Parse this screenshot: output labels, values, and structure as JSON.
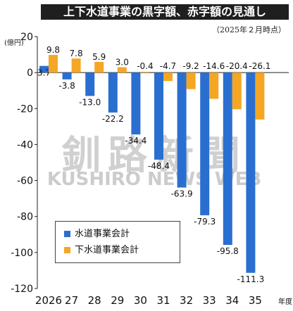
{
  "title": "上下水道事業の黒字額、赤字額の見通し",
  "asof": "（2025年２月時点）",
  "watermark": {
    "main": "釧路新聞",
    "sub": "KUSHIRO NEWS WEB"
  },
  "chart_data": {
    "type": "bar",
    "title": "上下水道事業の黒字額、赤字額の見通し",
    "ylabel": "(億円)",
    "xlabel": "年度",
    "ylim": [
      -120,
      20
    ],
    "yticks": [
      20,
      0,
      -20,
      -40,
      -60,
      -80,
      -100,
      -120
    ],
    "categories": [
      "2026",
      "27",
      "28",
      "29",
      "30",
      "31",
      "32",
      "33",
      "34",
      "35"
    ],
    "x_suffix": "年度",
    "series": [
      {
        "name": "水道事業会計",
        "color": "#2a6fd0",
        "values": [
          3.7,
          -3.8,
          -13.0,
          -22.2,
          -34.4,
          -48.4,
          -63.9,
          -79.3,
          -95.8,
          -111.3
        ],
        "labels": [
          "3.7",
          "-3.8",
          "-13.0",
          "-22.2",
          "-34.4",
          "-48.4",
          "-63.9",
          "-79.3",
          "-95.8",
          "-111.3"
        ]
      },
      {
        "name": "下水道事業会計",
        "color": "#f5a623",
        "values": [
          9.8,
          7.8,
          5.9,
          3.0,
          -0.4,
          -4.7,
          -9.2,
          -14.6,
          -20.4,
          -26.1
        ],
        "labels": [
          "9.8",
          "7.8",
          "5.9",
          "3.0",
          "-0.4",
          "-4.7",
          "-9.2",
          "-14.6",
          "-20.4",
          "-26.1"
        ]
      }
    ],
    "legend": "bottom-left",
    "grid": false
  }
}
